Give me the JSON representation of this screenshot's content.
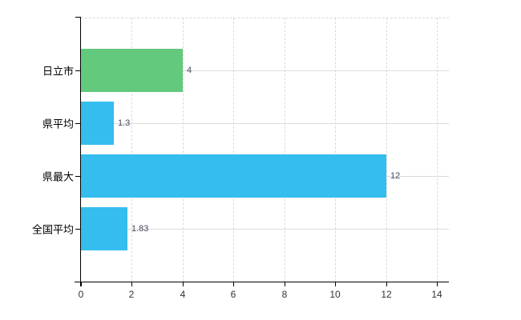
{
  "chart_data": {
    "type": "bar",
    "orientation": "horizontal",
    "title": "",
    "xlabel": "",
    "ylabel": "",
    "categories": [
      "日立市",
      "県平均",
      "県最大",
      "全国平均"
    ],
    "values": [
      4,
      1.3,
      12,
      1.83
    ],
    "value_labels": [
      "4",
      "1.3",
      "12",
      "1.83"
    ],
    "bar_colors": [
      "#63c97c",
      "#35bdee",
      "#35bdee",
      "#35bdee"
    ],
    "xlim": [
      0,
      14
    ],
    "x_ticks": [
      0,
      2,
      4,
      6,
      8,
      10,
      12,
      14
    ],
    "x_tick_labels": [
      "0",
      "2",
      "4",
      "6",
      "8",
      "10",
      "12",
      "14"
    ],
    "grid": "on",
    "legend": "none",
    "colors": {
      "green_bar": "#63c97c",
      "blue_bar": "#35bdee",
      "axis": "#000000",
      "grid_vertical": "#d9d9d9",
      "grid_horizontal": "#dcdcdc",
      "category_label": "#000000",
      "value_label": "#44465a",
      "tick_label": "#333333",
      "background": "#ffffff"
    }
  }
}
